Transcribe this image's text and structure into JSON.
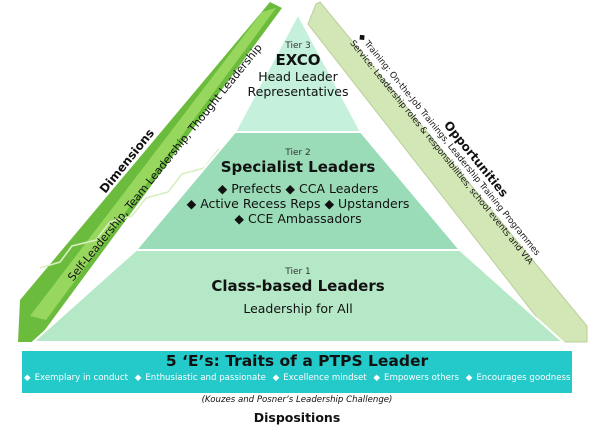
{
  "pyramid": {
    "tier3": {
      "label": "Tier 3",
      "title": "EXCO",
      "lines": [
        "Head Leader",
        "Representatives"
      ]
    },
    "tier2": {
      "label": "Tier 2",
      "title": "Specialist Leaders",
      "lines": [
        "◆ Prefects ◆ CCA Leaders",
        "◆ Active Recess Reps ◆ Upstanders",
        "◆ CCE Ambassadors"
      ]
    },
    "tier1": {
      "label": "Tier 1",
      "title": "Class-based Leaders",
      "sub": "Leadership for All"
    }
  },
  "dimensions": {
    "heading": "Dimensions",
    "text": "Self-Leadership, Team Leadership, Thought Leadership"
  },
  "opportunities": {
    "heading": "Opportunities",
    "lines": [
      "◆ Training: On-the-Job Trainings, Leadership Training Programmes",
      "Service: Leadership roles & responsibilities, school events and VIA"
    ]
  },
  "traits": {
    "title": "5 ‘E’s: Traits of a PTPS Leader",
    "items": [
      "Exemplary in conduct",
      "Enthusiastic and passionate",
      "Excellence mindset",
      "Empowers others",
      "Encourages goodness"
    ],
    "bullet": "◆"
  },
  "citation": "(Kouzes and Posner’s Leadership Challenge)",
  "dispositions": "Dispositions",
  "colors": {
    "tier1": "#b5e8c7",
    "tier2": "#9bdcb8",
    "tier3": "#c4f0dc",
    "dimensions_dark": "#6bbb3d",
    "dimensions_light": "#97d75e",
    "opportunities": "#d2e6b6",
    "traits_band": "#24c9c9"
  }
}
